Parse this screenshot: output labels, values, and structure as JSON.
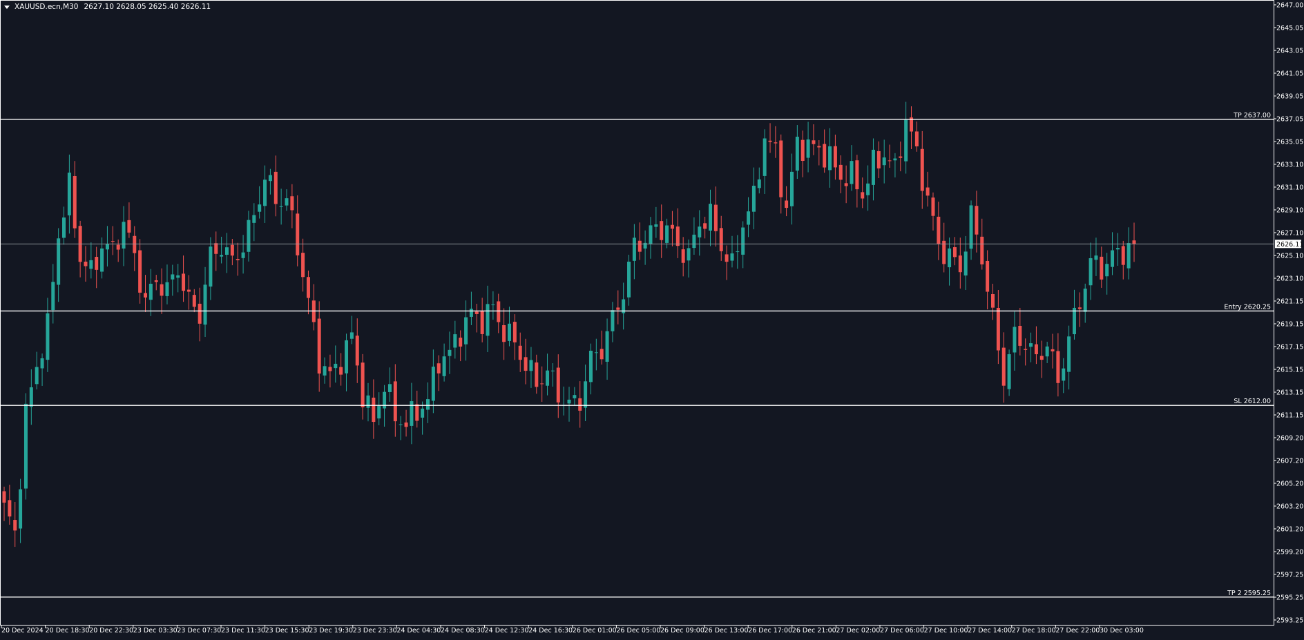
{
  "header": {
    "menu_icon": "triangle-down-icon",
    "symbol": "XAUUSD.ecn,M30",
    "ohlc": "2627.10 2628.05 2625.40 2626.11"
  },
  "colors": {
    "background": "#131722",
    "up": "#26a69a",
    "down": "#ef5350",
    "line": "#ffffff",
    "axis_text": "#ffffff"
  },
  "chart_data": {
    "type": "candlestick",
    "symbol": "XAUUSD.ecn",
    "timeframe": "M30",
    "ylim": [
      2593.25,
      2647.0
    ],
    "y_ticks": [
      "2647.00",
      "2645.05",
      "2643.05",
      "2641.05",
      "2639.05",
      "2637.05",
      "2635.05",
      "2633.10",
      "2631.10",
      "2629.10",
      "2627.10",
      "2625.10",
      "2623.10",
      "2621.15",
      "2619.15",
      "2617.15",
      "2615.15",
      "2613.15",
      "2611.15",
      "2609.20",
      "2607.20",
      "2605.20",
      "2603.20",
      "2601.20",
      "2599.20",
      "2597.25",
      "2595.25",
      "2593.25"
    ],
    "x_ticks": [
      "20 Dec 2024",
      "20 Dec 18:30",
      "20 Dec 22:30",
      "23 Dec 03:30",
      "23 Dec 07:30",
      "23 Dec 11:30",
      "23 Dec 15:30",
      "23 Dec 19:30",
      "23 Dec 23:30",
      "24 Dec 04:30",
      "24 Dec 08:30",
      "24 Dec 12:30",
      "24 Dec 16:30",
      "26 Dec 01:00",
      "26 Dec 05:00",
      "26 Dec 09:00",
      "26 Dec 13:00",
      "26 Dec 17:00",
      "26 Dec 21:00",
      "27 Dec 02:00",
      "27 Dec 06:00",
      "27 Dec 10:00",
      "27 Dec 14:00",
      "27 Dec 18:00",
      "27 Dec 22:00",
      "30 Dec 03:00"
    ],
    "last_price": "2626.11",
    "levels": [
      {
        "label": "TP 2637.00",
        "price": 2637.0
      },
      {
        "label": "Entry 2620.25",
        "price": 2620.25
      },
      {
        "label": "SL 2612.00",
        "price": 2612.0
      },
      {
        "label": "TP 2 2595.25",
        "price": 2595.25
      }
    ],
    "close_path": [
      [
        0,
        2603.0
      ],
      [
        2,
        2600.8
      ],
      [
        4,
        2611.2
      ],
      [
        6,
        2615.5
      ],
      [
        8,
        2618.8
      ],
      [
        10,
        2627.0
      ],
      [
        12,
        2631.0
      ],
      [
        14,
        2625.0
      ],
      [
        16,
        2623.5
      ],
      [
        18,
        2626.0
      ],
      [
        20,
        2625.5
      ],
      [
        22,
        2628.0
      ],
      [
        24,
        2625.0
      ],
      [
        26,
        2621.0
      ],
      [
        28,
        2623.0
      ],
      [
        30,
        2622.0
      ],
      [
        32,
        2624.0
      ],
      [
        34,
        2621.0
      ],
      [
        36,
        2620.0
      ],
      [
        38,
        2625.0
      ],
      [
        40,
        2626.0
      ],
      [
        42,
        2624.5
      ],
      [
        44,
        2626.0
      ],
      [
        46,
        2628.5
      ],
      [
        48,
        2632.0
      ],
      [
        50,
        2630.0
      ],
      [
        52,
        2630.0
      ],
      [
        54,
        2626.0
      ],
      [
        56,
        2621.0
      ],
      [
        58,
        2616.0
      ],
      [
        60,
        2614.5
      ],
      [
        62,
        2616.0
      ],
      [
        64,
        2618.0
      ],
      [
        66,
        2613.0
      ],
      [
        68,
        2610.5
      ],
      [
        70,
        2614.0
      ],
      [
        72,
        2611.0
      ],
      [
        74,
        2610.5
      ],
      [
        76,
        2611.5
      ],
      [
        78,
        2612.5
      ],
      [
        80,
        2616.0
      ],
      [
        82,
        2616.5
      ],
      [
        84,
        2618.5
      ],
      [
        86,
        2620.0
      ],
      [
        88,
        2619.5
      ],
      [
        90,
        2620.5
      ],
      [
        92,
        2618.5
      ],
      [
        94,
        2617.5
      ],
      [
        96,
        2615.5
      ],
      [
        98,
        2614.0
      ],
      [
        100,
        2615.0
      ],
      [
        102,
        2613.0
      ],
      [
        104,
        2612.0
      ],
      [
        106,
        2612.5
      ],
      [
        108,
        2616.0
      ],
      [
        110,
        2617.0
      ],
      [
        112,
        2619.5
      ],
      [
        114,
        2622.0
      ],
      [
        116,
        2626.0
      ],
      [
        118,
        2626.5
      ],
      [
        120,
        2627.5
      ],
      [
        122,
        2627.5
      ],
      [
        124,
        2626.0
      ],
      [
        126,
        2625.0
      ],
      [
        128,
        2628.0
      ],
      [
        130,
        2628.5
      ],
      [
        132,
        2626.0
      ],
      [
        134,
        2624.0
      ],
      [
        136,
        2628.0
      ],
      [
        138,
        2630.0
      ],
      [
        140,
        2635.5
      ],
      [
        142,
        2634.0
      ],
      [
        144,
        2629.0
      ],
      [
        146,
        2635.0
      ],
      [
        148,
        2634.5
      ],
      [
        150,
        2634.5
      ],
      [
        152,
        2633.5
      ],
      [
        154,
        2632.0
      ],
      [
        156,
        2632.0
      ],
      [
        158,
        2630.5
      ],
      [
        160,
        2633.0
      ],
      [
        162,
        2634.0
      ],
      [
        164,
        2632.5
      ],
      [
        166,
        2637.0
      ],
      [
        168,
        2634.0
      ],
      [
        170,
        2630.0
      ],
      [
        172,
        2626.0
      ],
      [
        174,
        2625.0
      ],
      [
        176,
        2624.0
      ],
      [
        178,
        2628.5
      ],
      [
        180,
        2625.0
      ],
      [
        182,
        2619.5
      ],
      [
        184,
        2614.5
      ],
      [
        186,
        2618.0
      ],
      [
        188,
        2617.5
      ],
      [
        190,
        2616.0
      ],
      [
        192,
        2617.5
      ],
      [
        194,
        2614.0
      ],
      [
        196,
        2618.0
      ],
      [
        198,
        2621.0
      ],
      [
        200,
        2624.5
      ],
      [
        202,
        2624.0
      ],
      [
        204,
        2625.0
      ],
      [
        206,
        2625.5
      ],
      [
        208,
        2626.11
      ]
    ]
  }
}
